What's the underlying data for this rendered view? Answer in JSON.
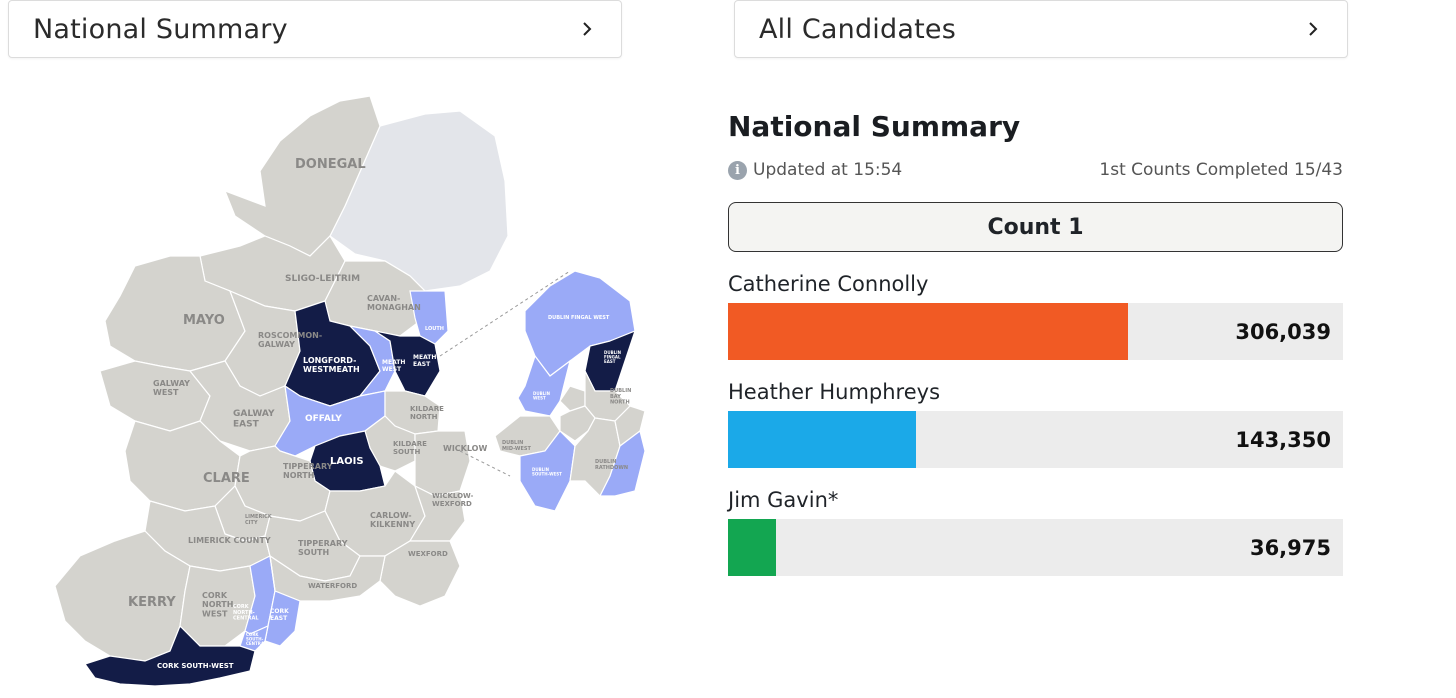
{
  "dropdowns": {
    "left_label": "National Summary",
    "right_label": "All Candidates"
  },
  "summary": {
    "title": "National Summary",
    "updated": "Updated at 15:54",
    "counts_completed": "1st Counts Completed 15/43",
    "count_button": "Count 1"
  },
  "candidates": [
    {
      "name": "Catherine Connolly",
      "votes": "306,039",
      "value": 306039,
      "color": "#f15a24"
    },
    {
      "name": "Heather Humphreys",
      "votes": "143,350",
      "value": 143350,
      "color": "#1ba9e8"
    },
    {
      "name": "Jim Gavin*",
      "votes": "36,975",
      "value": 36975,
      "color": "#13a651"
    }
  ],
  "bar_max_value": 470000,
  "map": {
    "colors": {
      "grey": "#d4d3ce",
      "light_blue": "#9aaaf7",
      "navy": "#131c47",
      "northern": "#e3e5ea",
      "border": "#ffffff"
    },
    "labels": {
      "donegal": "DONEGAL",
      "sligo": "SLIGO-LEITRIM",
      "mayo": "MAYO",
      "cavan": "CAVAN-\nMONAGHAN",
      "louth": "LOUTH",
      "roscommon": "ROSCOMMON-\nGALWAY",
      "longford": "LONGFORD-\nWESTMEATH",
      "meath_west": "MEATH\nWEST",
      "meath_east": "MEATH\nEAST",
      "galway_west": "GALWAY\nWEST",
      "galway_east": "GALWAY\nEAST",
      "offaly": "OFFALY",
      "kildare_north": "KILDARE\nNORTH",
      "kildare_south": "KILDARE\nSOUTH",
      "laois": "LAOIS",
      "wicklow": "WICKLOW",
      "clare": "CLARE",
      "tipperary_north": "TIPPERARY\nNORTH",
      "limerick_city": "LIMERICK\nCITY",
      "carlow": "CARLOW-\nKILKENNY",
      "wicklow_wexford": "WICKLOW-\nWEXFORD",
      "limerick_county": "LIMERICK COUNTY",
      "tipperary_south": "TIPPERARY\nSOUTH",
      "wexford": "WEXFORD",
      "waterford": "WATERFORD",
      "kerry": "KERRY",
      "cork_nw": "CORK\nNORTH-\nWEST",
      "cork_nc": "CORK\nNORTH-\nCENTRAL",
      "cork_east": "CORK\nEAST",
      "cork_sc": "CORK\nSOUTH-\nCENTRAL",
      "cork_sw": "CORK SOUTH-WEST",
      "dublin_fingal_west": "DUBLIN FINGAL WEST",
      "dublin_fingal_east": "DUBLIN\nFINGAL\nEAST",
      "dublin_west": "DUBLIN\nWEST",
      "dublin_bay_north": "DUBLIN\nBAY\nNORTH",
      "dublin_mid_west": "DUBLIN\nMID-WEST",
      "dublin_south_west": "DUBLIN\nSOUTH-WEST",
      "dublin_rathdown": "DUBLIN\nRATHDOWN"
    }
  }
}
